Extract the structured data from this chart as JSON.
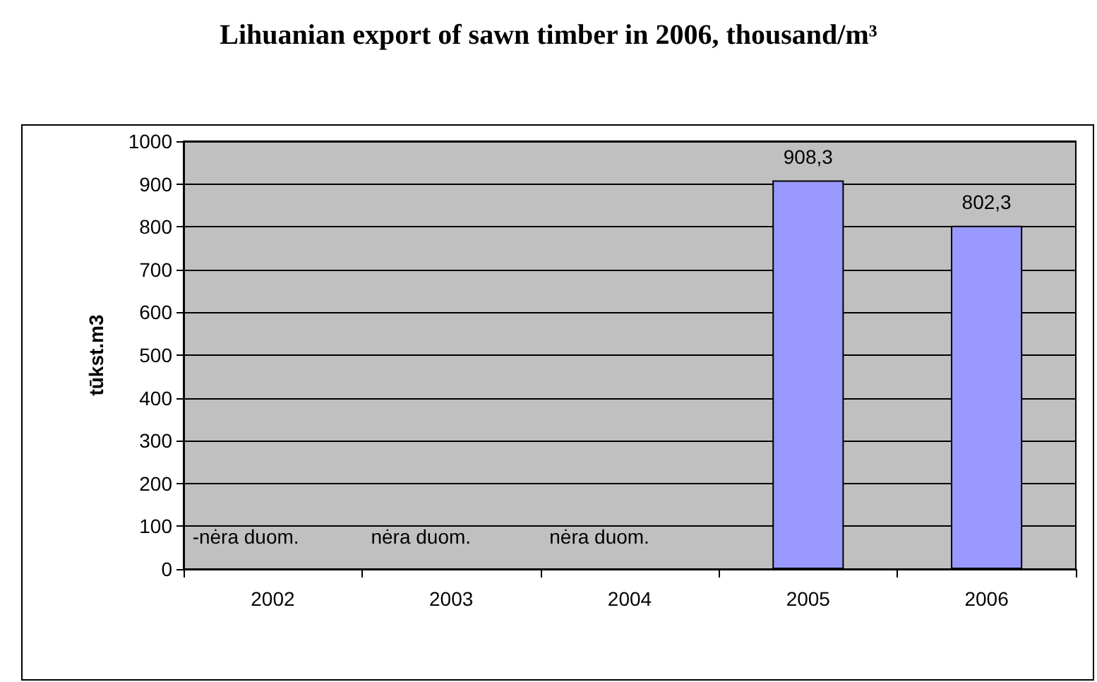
{
  "chart_data": {
    "type": "bar",
    "title": "Lihuanian export of sawn timber in 2006, thousand/m³",
    "ylabel": "tūkst.m3",
    "categories": [
      "2002",
      "2003",
      "2004",
      "2005",
      "2006"
    ],
    "values": [
      null,
      null,
      null,
      908.3,
      802.3
    ],
    "value_labels": [
      "-nėra duom.",
      "nėra duom.",
      "nėra duom.",
      "908,3",
      "802,3"
    ],
    "color": "#9999ff",
    "ylim": [
      0,
      1000
    ],
    "yticks": [
      0,
      100,
      200,
      300,
      400,
      500,
      600,
      700,
      800,
      900,
      1000
    ],
    "grid": "y"
  }
}
